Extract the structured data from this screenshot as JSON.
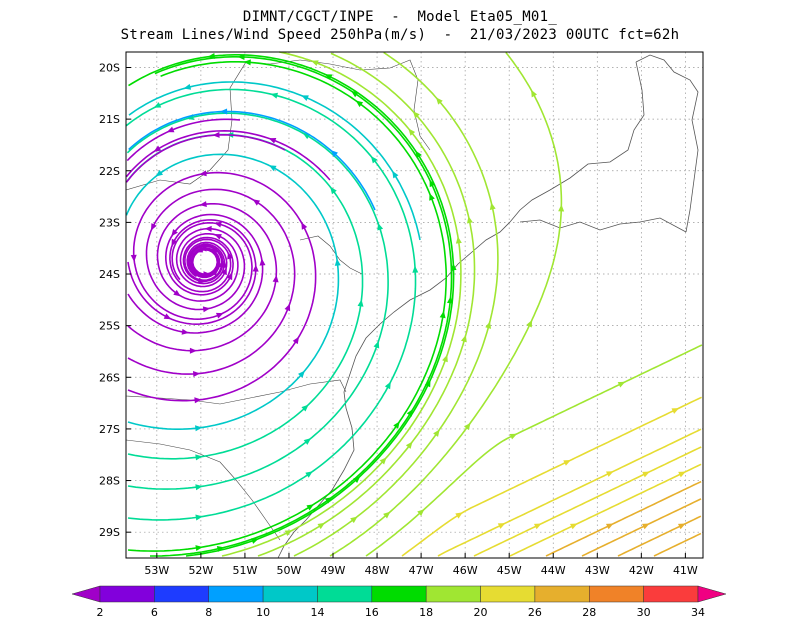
{
  "header": {
    "line1": "DIMNT/CGCT/INPE  -  Model Eta05_M01_",
    "line2": "Stream Lines/Wind Speed 250hPa(m/s)  -  21/03/2023 00UTC fct=62h"
  },
  "map": {
    "lat_labels": [
      "20S",
      "21S",
      "22S",
      "23S",
      "24S",
      "25S",
      "26S",
      "27S",
      "28S",
      "29S"
    ],
    "lon_labels": [
      "53W",
      "52W",
      "51W",
      "50W",
      "49W",
      "48W",
      "47W",
      "46W",
      "45W",
      "44W",
      "43W",
      "42W",
      "41W"
    ],
    "lat_range": [
      -29.5,
      -19.7
    ],
    "lon_range": [
      -53.7,
      -40.6
    ],
    "grid": "dotted"
  },
  "colorbar": {
    "labels": [
      "2",
      "6",
      "8",
      "10",
      "14",
      "16",
      "18",
      "20",
      "26",
      "28",
      "30",
      "34"
    ],
    "colors": [
      "#a000c8",
      "#8200dc",
      "#1e3cff",
      "#00a0ff",
      "#00c8c8",
      "#00dc96",
      "#00dc00",
      "#a0e632",
      "#e6dc32",
      "#e6af2d",
      "#f08228",
      "#fa3c3c",
      "#f00082"
    ]
  }
}
